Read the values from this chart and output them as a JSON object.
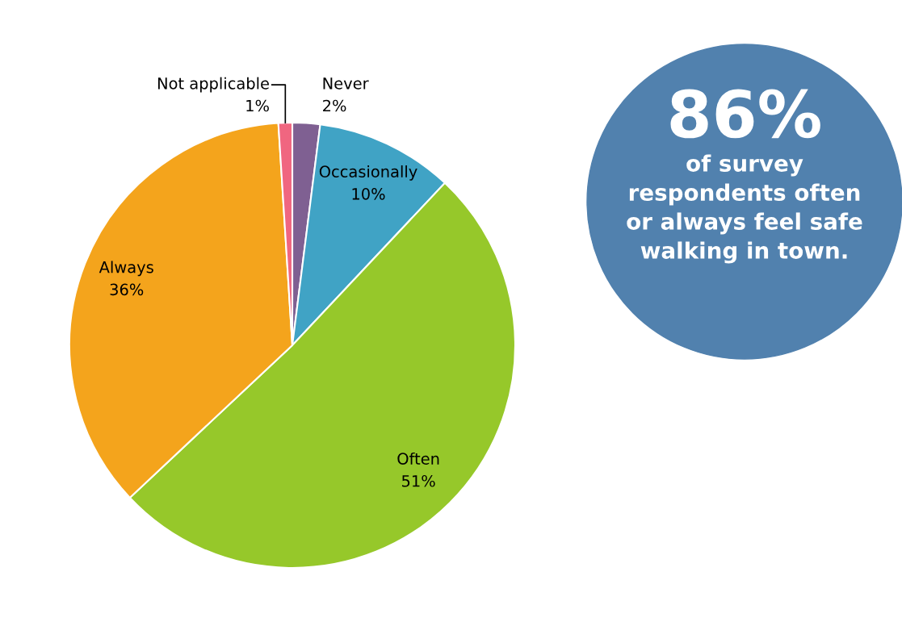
{
  "chart_data": {
    "type": "pie",
    "categories": [
      "Never",
      "Occasionally",
      "Often",
      "Always",
      "Not applicable"
    ],
    "values": [
      2,
      10,
      51,
      36,
      1
    ],
    "value_labels": [
      "2%",
      "10%",
      "51%",
      "36%",
      "1%"
    ],
    "colors": [
      "#7f6092",
      "#40a3c5",
      "#96c82a",
      "#f4a41c",
      "#f06680"
    ],
    "annotations": [
      "86%",
      "of survey",
      "respondents often",
      "or always feel safe",
      "walking in town."
    ],
    "legend": false
  }
}
